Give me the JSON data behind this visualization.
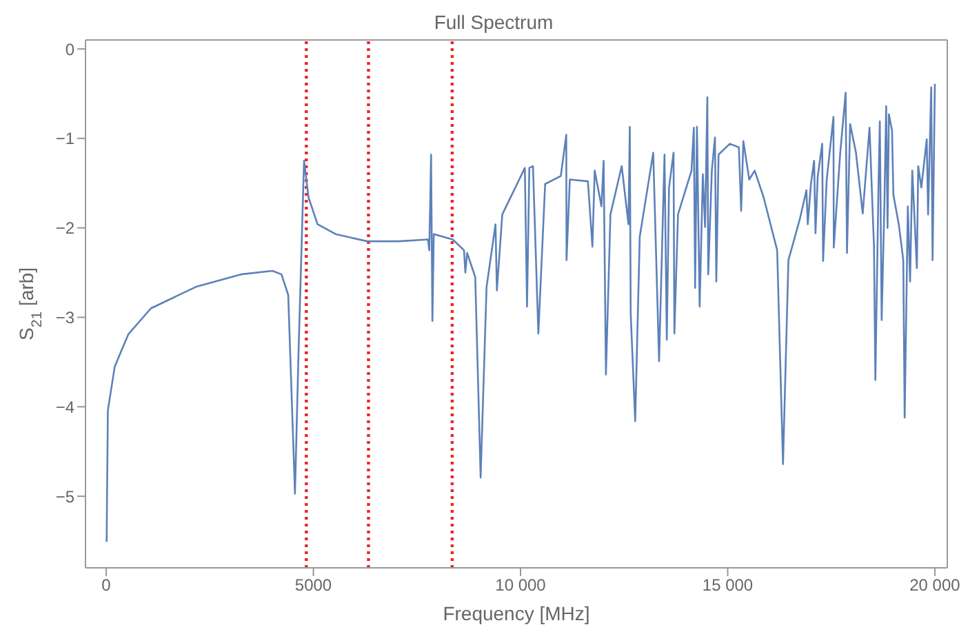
{
  "chart_data": {
    "type": "line",
    "title": "Full Spectrum",
    "xlabel": "Frequency [MHz]",
    "ylabel": "S$_{21}$ [arb]",
    "xlim": [
      -500,
      20300
    ],
    "xticks": [
      0,
      5000,
      {
        "value": 10000,
        "label": "10 000"
      },
      {
        "value": 15000,
        "label": "15 000"
      },
      {
        "value": 20000,
        "label": "20 000"
      }
    ],
    "ylim": [
      -5.8,
      0.1
    ],
    "yticks": [
      0,
      -1,
      -2,
      -3,
      -4,
      -5
    ],
    "ref_lines": [
      {
        "axis": "x",
        "value": 4830,
        "color": "#e8262a",
        "line_style": "dotted"
      },
      {
        "axis": "x",
        "value": 6330,
        "color": "#e8262a",
        "line_style": "dotted"
      },
      {
        "axis": "x",
        "value": 8350,
        "color": "#e8262a",
        "line_style": "dotted"
      }
    ],
    "series": [
      {
        "color": "#5d81b9",
        "x": [
          10,
          40,
          206,
          533,
          1077,
          2163,
          3250,
          4013,
          4230,
          4393,
          4556,
          4645,
          4775,
          4883,
          5101,
          5536,
          6297,
          7058,
          7765,
          7798,
          7841,
          7873,
          7906,
          8364,
          8636,
          8668,
          8711,
          8907,
          9037,
          9180,
          9396,
          9429,
          9560,
          10104,
          10157,
          10212,
          10300,
          10430,
          10594,
          10972,
          11104,
          11110,
          11190,
          11626,
          11735,
          11790,
          11953,
          12006,
          12061,
          12170,
          12442,
          12605,
          12637,
          12659,
          12768,
          12877,
          13203,
          13344,
          13475,
          13530,
          13584,
          13693,
          13713,
          13801,
          14127,
          14182,
          14214,
          14258,
          14323,
          14400,
          14454,
          14509,
          14530,
          14617,
          14693,
          14725,
          14780,
          15052,
          15270,
          15325,
          15378,
          15520,
          15651,
          15868,
          16194,
          16335,
          16466,
          16737,
          16900,
          16933,
          17009,
          17086,
          17119,
          17172,
          17281,
          17302,
          17390,
          17553,
          17560,
          17716,
          17847,
          17879,
          17955,
          18096,
          18259,
          18423,
          18531,
          18564,
          18640,
          18672,
          18716,
          18781,
          18825,
          18858,
          18891,
          18966,
          18999,
          19129,
          19238,
          19271,
          19348,
          19402,
          19455,
          19566,
          19598,
          19674,
          19804,
          19837,
          19912,
          19945,
          20000
        ],
        "values": [
          -5.51,
          -4.04,
          -3.55,
          -3.19,
          -2.9,
          -2.66,
          -2.52,
          -2.48,
          -2.52,
          -2.75,
          -4.97,
          -3.34,
          -1.25,
          -1.66,
          -1.96,
          -2.07,
          -2.15,
          -2.15,
          -2.13,
          -2.25,
          -1.18,
          -3.04,
          -2.07,
          -2.13,
          -2.25,
          -2.5,
          -2.28,
          -2.55,
          -4.79,
          -2.66,
          -1.96,
          -2.7,
          -1.85,
          -1.33,
          -2.88,
          -1.33,
          -1.31,
          -3.18,
          -1.51,
          -1.42,
          -0.96,
          -2.36,
          -1.46,
          -1.48,
          -2.21,
          -1.36,
          -1.76,
          -1.25,
          -3.64,
          -1.85,
          -1.31,
          -1.96,
          -0.87,
          -2.96,
          -4.16,
          -2.1,
          -1.16,
          -3.49,
          -1.18,
          -3.25,
          -1.55,
          -1.16,
          -3.18,
          -1.85,
          -1.36,
          -0.88,
          -2.67,
          -0.87,
          -2.88,
          -1.4,
          -1.99,
          -0.54,
          -2.52,
          -1.36,
          -0.99,
          -2.6,
          -1.18,
          -1.06,
          -1.1,
          -1.81,
          -1.03,
          -1.46,
          -1.36,
          -1.66,
          -2.25,
          -4.64,
          -2.36,
          -1.91,
          -1.58,
          -1.96,
          -1.51,
          -1.25,
          -2.06,
          -1.43,
          -1.06,
          -2.37,
          -1.46,
          -0.76,
          -2.22,
          -1.16,
          -0.49,
          -2.28,
          -0.84,
          -1.16,
          -1.84,
          -0.88,
          -2.21,
          -3.7,
          -1.51,
          -0.81,
          -3.03,
          -1.76,
          -0.64,
          -2.0,
          -0.73,
          -0.91,
          -1.63,
          -1.96,
          -2.36,
          -4.12,
          -1.76,
          -2.6,
          -1.36,
          -2.45,
          -1.31,
          -1.55,
          -1.01,
          -1.85,
          -0.43,
          -2.36,
          -0.39
        ]
      }
    ]
  }
}
